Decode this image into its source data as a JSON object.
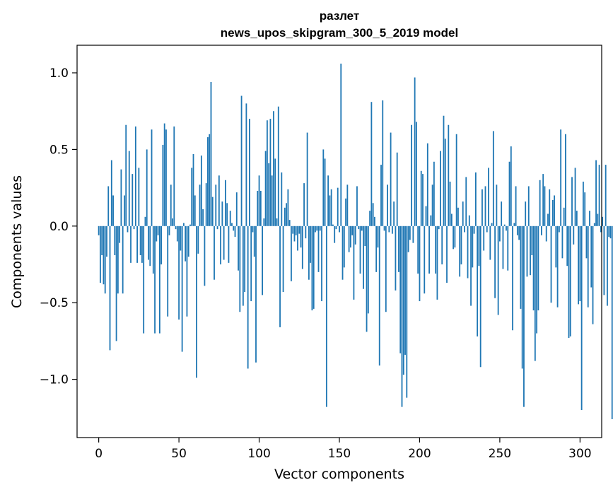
{
  "chart_data": {
    "type": "bar",
    "title": "разлет",
    "subtitle": "news_upos_skipgram_300_5_2019 model",
    "xlabel": "Vector components",
    "ylabel": "Components values",
    "xlim": [
      -13.5,
      313.5
    ],
    "ylim": [
      -1.38,
      1.18
    ],
    "x_ticks": [
      0,
      50,
      100,
      150,
      200,
      250,
      300
    ],
    "y_ticks": [
      -1.0,
      -0.5,
      0.0,
      0.5,
      1.0
    ],
    "x_tick_labels": [
      "0",
      "50",
      "100",
      "150",
      "200",
      "250",
      "300"
    ],
    "y_tick_labels": [
      "−1.0",
      "−0.5",
      "0.0",
      "0.5",
      "1.0"
    ],
    "color": "#1f77b4",
    "values": [
      -0.06,
      -0.37,
      -0.19,
      -0.38,
      -0.44,
      -0.2,
      0.26,
      -0.81,
      0.43,
      0.2,
      -0.19,
      -0.75,
      -0.44,
      -0.11,
      0.37,
      -0.44,
      0.2,
      0.66,
      -0.04,
      0.49,
      -0.24,
      0.34,
      -0.02,
      0.65,
      -0.24,
      0.38,
      -0.19,
      -0.24,
      -0.7,
      0.06,
      0.5,
      -0.22,
      -0.26,
      0.63,
      -0.31,
      -0.7,
      -0.1,
      -0.06,
      -0.7,
      -0.25,
      0.53,
      0.67,
      0.63,
      -0.59,
      -0.06,
      0.27,
      0.05,
      0.65,
      -0.02,
      -0.1,
      -0.61,
      -0.16,
      -0.82,
      0.02,
      -0.23,
      -0.59,
      -0.2,
      0.01,
      0.38,
      0.47,
      0.2,
      -0.99,
      -0.18,
      0.27,
      0.46,
      0.11,
      -0.39,
      0.28,
      0.58,
      0.6,
      0.94,
      0.19,
      -0.35,
      0.27,
      -0.02,
      0.33,
      -0.25,
      0.16,
      -0.22,
      0.3,
      0.15,
      -0.24,
      0.1,
      0.02,
      -0.03,
      -0.07,
      0.22,
      -0.29,
      -0.56,
      0.85,
      -0.52,
      -0.43,
      0.8,
      -0.93,
      0.7,
      -0.49,
      -0.04,
      -0.2,
      -0.89,
      0.23,
      0.33,
      0.23,
      -0.45,
      0.05,
      0.49,
      0.69,
      0.41,
      0.7,
      0.33,
      0.75,
      0.44,
      0.05,
      0.78,
      -0.66,
      0.35,
      -0.43,
      0.12,
      0.15,
      0.24,
      0.04,
      -0.36,
      -0.05,
      -0.1,
      -0.06,
      -0.16,
      -0.05,
      -0.14,
      -0.28,
      0.28,
      -0.08,
      0.61,
      -0.35,
      -0.24,
      -0.55,
      -0.54,
      -0.04,
      -0.03,
      -0.3,
      -0.03,
      -0.49,
      0.5,
      0.44,
      -1.18,
      0.33,
      0.2,
      0.24,
      0.01,
      -0.11,
      -0.02,
      0.25,
      -0.04,
      1.06,
      -0.35,
      -0.27,
      0.18,
      0.27,
      -0.17,
      -0.14,
      -0.06,
      -0.48,
      -0.12,
      0.26,
      -0.02,
      -0.31,
      -0.03,
      -0.41,
      -0.13,
      -0.69,
      -0.57,
      0.1,
      0.81,
      0.15,
      0.06,
      -0.3,
      -0.14,
      -0.91,
      0.4,
      0.82,
      -0.03,
      -0.56,
      0.27,
      -0.04,
      0.61,
      -0.05,
      0.16,
      -0.42,
      0.48,
      -0.3,
      -0.83,
      -1.18,
      -0.97,
      -0.84,
      -1.12,
      -0.17,
      -0.09,
      0.66,
      -0.11,
      0.97,
      0.68,
      -0.31,
      -0.49,
      0.36,
      0.34,
      -0.44,
      0.13,
      0.54,
      -0.31,
      0.07,
      0.27,
      0.42,
      -0.31,
      -0.48,
      -0.02,
      0.49,
      -0.25,
      0.72,
      0.57,
      -0.37,
      0.66,
      0.29,
      0.08,
      -0.15,
      -0.14,
      0.6,
      0.12,
      -0.33,
      -0.25,
      0.16,
      -0.04,
      0.32,
      -0.34,
      0.07,
      -0.52,
      -0.27,
      -0.05,
      0.35,
      -0.72,
      -0.26,
      -0.92,
      0.24,
      -0.16,
      0.26,
      -0.04,
      0.38,
      -0.22,
      0.02,
      0.62,
      -0.47,
      0.27,
      -0.58,
      -0.1,
      0.16,
      -0.28,
      0.01,
      -0.03,
      -0.29,
      0.42,
      0.52,
      -0.68,
      0.02,
      0.26,
      -0.06,
      -0.09,
      -0.54,
      -0.93,
      -1.18,
      0.16,
      -0.33,
      0.26,
      -0.32,
      -0.19,
      -0.55,
      -0.88,
      -0.7,
      -0.55,
      0.3,
      -0.06,
      0.34,
      0.26,
      -0.1,
      0.08,
      0.24,
      -0.5,
      0.17,
      0.2,
      -0.27,
      -0.53,
      -0.04,
      0.63,
      -0.21,
      0.12,
      0.6,
      -0.26,
      -0.73,
      -0.72,
      0.32,
      -0.12,
      0.38,
      0.1,
      -0.51,
      -0.49,
      -1.2,
      0.29,
      0.22,
      -0.21,
      -0.53,
      0.1,
      -0.4,
      -0.64,
      0.02,
      0.43,
      0.08,
      0.4,
      -0.04,
      0.06,
      -0.45,
      0.4,
      -0.52,
      -0.07,
      -0.08,
      -1.26,
      -0.05
    ]
  }
}
